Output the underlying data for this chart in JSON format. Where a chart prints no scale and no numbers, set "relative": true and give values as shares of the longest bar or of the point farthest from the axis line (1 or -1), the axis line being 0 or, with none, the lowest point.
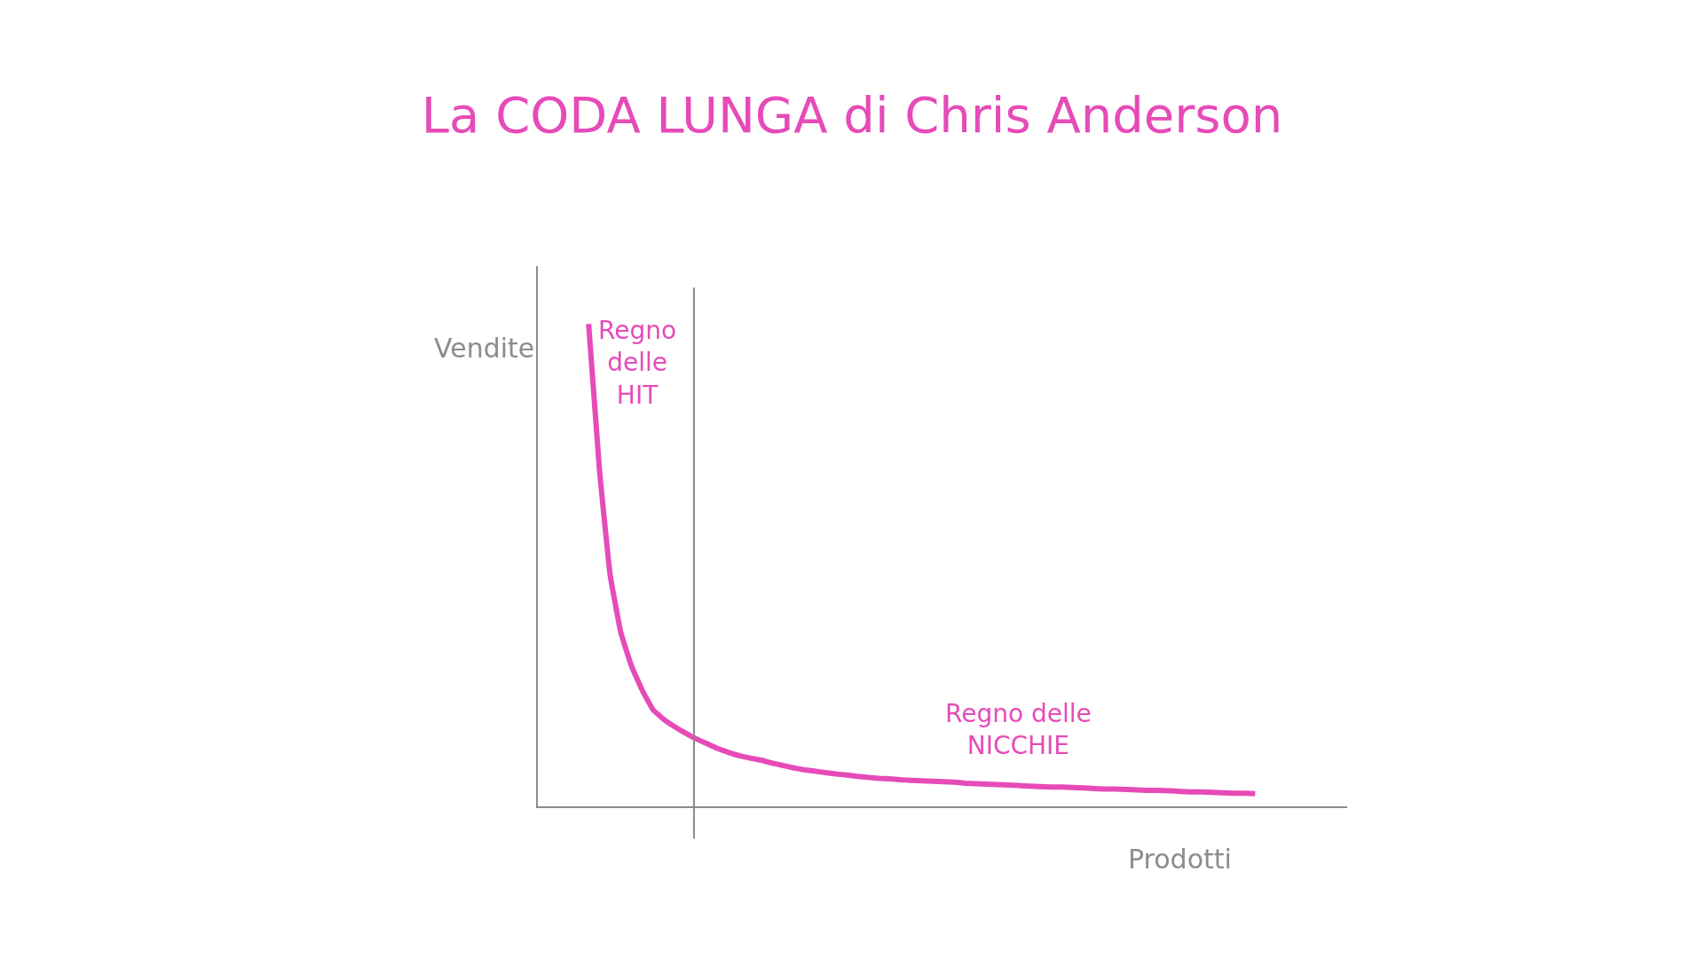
{
  "chart_data": {
    "type": "line",
    "title": "La CODA LUNGA di Chris Anderson",
    "xlabel": "Prodotti",
    "ylabel": "Vendite",
    "relative": true,
    "categories": [
      null,
      null,
      null,
      null,
      null,
      null,
      null,
      null,
      null,
      null,
      null,
      null,
      null,
      null,
      null,
      null,
      null,
      null,
      null,
      null,
      null,
      null,
      null,
      null,
      null,
      null,
      null,
      null,
      null,
      null,
      null,
      null,
      null,
      null,
      null,
      null,
      null,
      null,
      null,
      null,
      null,
      null,
      null,
      null,
      null,
      null,
      null,
      null,
      null,
      null,
      null,
      null,
      null,
      null,
      null,
      null,
      null,
      null,
      null,
      null,
      null,
      null,
      null
    ],
    "series": [
      {
        "color": "#e64bb8",
        "values": [
          1.0,
          0.7,
          0.48,
          0.36,
          0.29,
          0.24,
          0.2,
          0.18,
          0.165,
          0.152,
          0.14,
          0.13,
          0.12,
          0.112,
          0.105,
          0.1,
          0.096,
          0.09,
          0.085,
          0.08,
          0.076,
          0.073,
          0.07,
          0.067,
          0.065,
          0.062,
          0.06,
          0.058,
          0.057,
          0.055,
          0.054,
          0.053,
          0.052,
          0.051,
          0.05,
          0.048,
          0.047,
          0.046,
          0.045,
          0.044,
          0.043,
          0.042,
          0.041,
          0.04,
          0.04,
          0.039,
          0.038,
          0.037,
          0.036,
          0.036,
          0.035,
          0.034,
          0.033,
          0.033,
          0.032,
          0.031,
          0.03,
          0.03,
          0.029,
          0.028,
          0.027,
          0.027,
          0.026
        ]
      }
    ],
    "annotations": [
      "Regno\ndelle\nHIT",
      "Regno delle\nNICCHIE"
    ],
    "line_style": "solid"
  }
}
